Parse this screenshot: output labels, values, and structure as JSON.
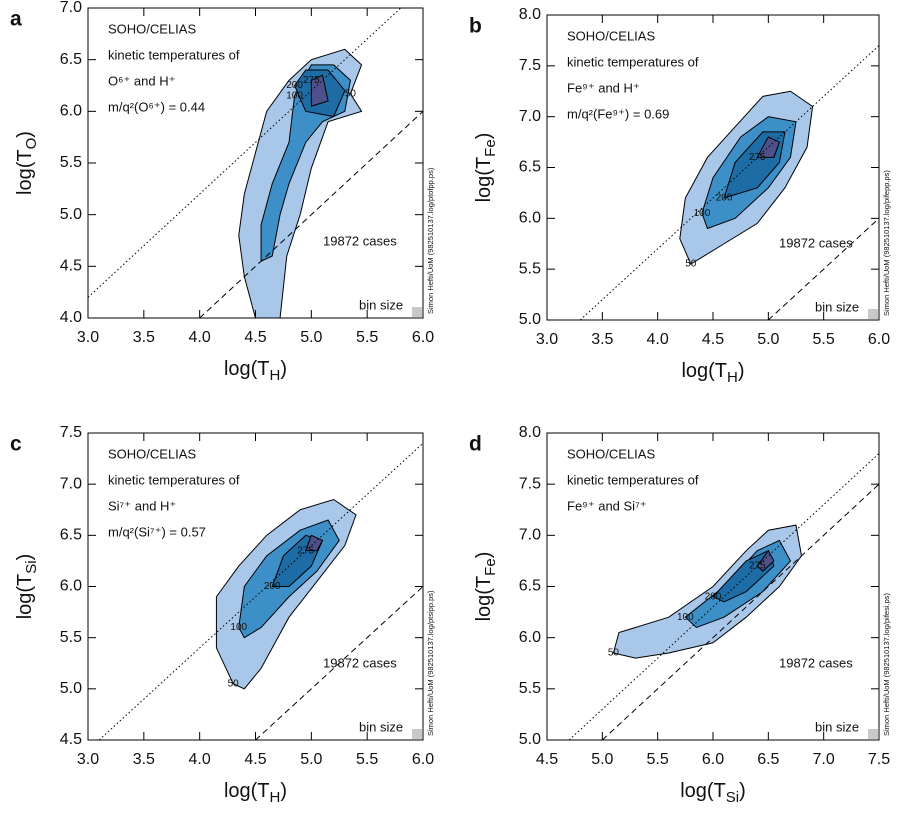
{
  "chart_data": [
    {
      "type": "contour",
      "panel": "a",
      "x_label": {
        "text": "log(T",
        "sub": "H",
        "close": ")"
      },
      "y_label": {
        "text": "log(T",
        "sub": "O",
        "close": ")"
      },
      "xlim": [
        3.0,
        6.0
      ],
      "ylim": [
        4.0,
        7.0
      ],
      "xticks": [
        {
          "value": 3,
          "label": "3.0"
        },
        {
          "value": 3.5,
          "label": "3.5"
        },
        {
          "value": 4,
          "label": "4.0"
        },
        {
          "value": 4.5,
          "label": "4.5"
        },
        {
          "value": 5,
          "label": "5.0"
        },
        {
          "value": 5.5,
          "label": "5.5"
        },
        {
          "value": 6,
          "label": "6.0"
        }
      ],
      "yticks": [
        {
          "value": 4,
          "label": "4.0"
        },
        {
          "value": 4.5,
          "label": "4.5"
        },
        {
          "value": 5,
          "label": "5.0"
        },
        {
          "value": 5.5,
          "label": "5.5"
        },
        {
          "value": 6,
          "label": "6.0"
        },
        {
          "value": 6.5,
          "label": "6.5"
        },
        {
          "value": 7,
          "label": "7.0"
        }
      ],
      "annotations": [
        "SOHO/CELIAS",
        "kinetic temperatures of",
        "O⁶⁺ and H⁺",
        "m/q²(O⁶⁺) = 0.44"
      ],
      "cases": "19872 cases",
      "bin_label": "bin size",
      "credit": "Simon Hefti/UoM (982510137.log/ptofpp.ps)",
      "contours": [
        {
          "level": 50,
          "color": "#a9c7e9",
          "x": [
            5.35,
            5.45,
            5.3,
            5.0,
            4.8,
            4.6,
            4.5,
            4.4,
            4.35,
            4.4,
            4.5,
            4.72,
            4.78,
            4.9,
            5.0,
            5.15,
            5.45
          ],
          "y": [
            6.17,
            6.45,
            6.6,
            6.5,
            6.3,
            6.0,
            5.6,
            5.2,
            4.8,
            4.4,
            4.0,
            4.0,
            4.6,
            5.0,
            5.45,
            5.9,
            6.0
          ]
        },
        {
          "level": 100,
          "color": "#3d8fc7",
          "x": [
            4.85,
            4.8,
            4.65,
            4.55,
            4.55,
            4.65,
            4.72,
            4.8,
            4.95,
            5.1,
            5.3,
            5.35,
            5.2,
            5.0
          ],
          "y": [
            6.15,
            5.7,
            5.3,
            4.9,
            4.55,
            4.6,
            5.0,
            5.3,
            5.7,
            5.9,
            6.0,
            6.3,
            6.45,
            6.45
          ]
        },
        {
          "level": 200,
          "color": "#1d6ca5",
          "x": [
            4.85,
            4.95,
            5.2,
            5.3,
            5.15,
            4.95
          ],
          "y": [
            6.25,
            6.0,
            5.95,
            6.2,
            6.4,
            6.4
          ]
        },
        {
          "level": 275,
          "color": "#4e508c",
          "x": [
            5.0,
            5.0,
            5.15,
            5.1
          ],
          "y": [
            6.3,
            6.05,
            6.1,
            6.35
          ]
        }
      ],
      "reference_lines": [
        {
          "style": "dotted",
          "x": [
            3.0,
            5.8
          ],
          "y": [
            4.2,
            7.0
          ]
        },
        {
          "style": "dashed",
          "x": [
            4.0,
            6.0
          ],
          "y": [
            4.0,
            6.0
          ]
        }
      ]
    },
    {
      "type": "contour",
      "panel": "b",
      "x_label": {
        "text": "log(T",
        "sub": "H",
        "close": ")"
      },
      "y_label": {
        "text": "log(T",
        "sub": "Fe",
        "close": ")"
      },
      "xlim": [
        3.0,
        6.0
      ],
      "ylim": [
        5.0,
        8.0
      ],
      "xticks": [
        {
          "value": 3,
          "label": "3.0"
        },
        {
          "value": 3.5,
          "label": "3.5"
        },
        {
          "value": 4,
          "label": "4.0"
        },
        {
          "value": 4.5,
          "label": "4.5"
        },
        {
          "value": 5,
          "label": "5.0"
        },
        {
          "value": 5.5,
          "label": "5.5"
        },
        {
          "value": 6,
          "label": "6.0"
        }
      ],
      "yticks": [
        {
          "value": 5,
          "label": "5.0"
        },
        {
          "value": 5.5,
          "label": "5.5"
        },
        {
          "value": 6,
          "label": "6.0"
        },
        {
          "value": 6.5,
          "label": "6.5"
        },
        {
          "value": 7,
          "label": "7.0"
        },
        {
          "value": 7.5,
          "label": "7.5"
        },
        {
          "value": 8,
          "label": "8.0"
        }
      ],
      "annotations": [
        "SOHO/CELIAS",
        "kinetic temperatures of",
        "Fe⁹⁺ and H⁺",
        "m/q²(Fe⁹⁺) = 0.69"
      ],
      "cases": "19872 cases",
      "bin_label": "bin size",
      "credit": "Simon Hefti/UoM (982510137.log/pifepp.ps)",
      "contours": [
        {
          "level": 50,
          "color": "#a9c7e9",
          "x": [
            4.3,
            4.2,
            4.25,
            4.45,
            4.7,
            4.95,
            5.2,
            5.4,
            5.35,
            5.15,
            4.9,
            4.6
          ],
          "y": [
            5.55,
            5.8,
            6.2,
            6.6,
            6.9,
            7.2,
            7.25,
            7.1,
            6.7,
            6.3,
            5.95,
            5.75
          ]
        },
        {
          "level": 100,
          "color": "#3d8fc7",
          "x": [
            4.4,
            4.5,
            4.75,
            5.0,
            5.25,
            5.2,
            5.0,
            4.7,
            4.45
          ],
          "y": [
            6.05,
            6.4,
            6.8,
            7.0,
            6.95,
            6.6,
            6.3,
            6.0,
            5.9
          ]
        },
        {
          "level": 200,
          "color": "#1d6ca5",
          "x": [
            4.6,
            4.7,
            4.95,
            5.15,
            5.1,
            4.9
          ],
          "y": [
            6.2,
            6.55,
            6.85,
            6.85,
            6.55,
            6.3
          ]
        },
        {
          "level": 275,
          "color": "#4e508c",
          "x": [
            4.9,
            5.0,
            5.1,
            5.05
          ],
          "y": [
            6.6,
            6.8,
            6.75,
            6.6
          ]
        }
      ],
      "reference_lines": [
        {
          "style": "dotted",
          "x": [
            3.3,
            6.0
          ],
          "y": [
            5.0,
            7.7
          ]
        },
        {
          "style": "dashed",
          "x": [
            5.0,
            6.0
          ],
          "y": [
            5.0,
            6.0
          ]
        }
      ]
    },
    {
      "type": "contour",
      "panel": "c",
      "x_label": {
        "text": "log(T",
        "sub": "H",
        "close": ")"
      },
      "y_label": {
        "text": "log(T",
        "sub": "Si",
        "close": ")"
      },
      "xlim": [
        3.0,
        6.0
      ],
      "ylim": [
        4.5,
        7.5
      ],
      "xticks": [
        {
          "value": 3,
          "label": "3.0"
        },
        {
          "value": 3.5,
          "label": "3.5"
        },
        {
          "value": 4,
          "label": "4.0"
        },
        {
          "value": 4.5,
          "label": "4.5"
        },
        {
          "value": 5,
          "label": "5.0"
        },
        {
          "value": 5.5,
          "label": "5.5"
        },
        {
          "value": 6,
          "label": "6.0"
        }
      ],
      "yticks": [
        {
          "value": 4.5,
          "label": "4.5"
        },
        {
          "value": 5,
          "label": "5.0"
        },
        {
          "value": 5.5,
          "label": "5.5"
        },
        {
          "value": 6,
          "label": "6.0"
        },
        {
          "value": 6.5,
          "label": "6.5"
        },
        {
          "value": 7,
          "label": "7.0"
        },
        {
          "value": 7.5,
          "label": "7.5"
        }
      ],
      "annotations": [
        "SOHO/CELIAS",
        "kinetic temperatures of",
        "Si⁷⁺ and H⁺",
        "m/q²(Si⁷⁺) = 0.57"
      ],
      "cases": "19872 cases",
      "bin_label": "bin size",
      "credit": "Simon Hefti/UoM (982510137.log/ptsipp.ps)",
      "contours": [
        {
          "level": 50,
          "color": "#a9c7e9",
          "x": [
            4.3,
            4.15,
            4.15,
            4.35,
            4.6,
            4.9,
            5.2,
            5.4,
            5.3,
            5.05,
            4.8,
            4.55,
            4.4
          ],
          "y": [
            5.05,
            5.4,
            5.9,
            6.2,
            6.5,
            6.75,
            6.85,
            6.7,
            6.4,
            6.05,
            5.7,
            5.2,
            5.0
          ]
        },
        {
          "level": 100,
          "color": "#3d8fc7",
          "x": [
            4.35,
            4.4,
            4.6,
            4.9,
            5.15,
            5.25,
            5.05,
            4.8,
            4.55,
            4.4
          ],
          "y": [
            5.6,
            6.0,
            6.3,
            6.55,
            6.65,
            6.45,
            6.15,
            5.9,
            5.6,
            5.5
          ]
        },
        {
          "level": 200,
          "color": "#1d6ca5",
          "x": [
            4.65,
            4.75,
            4.95,
            5.1,
            5.0,
            4.8
          ],
          "y": [
            6.0,
            6.3,
            6.5,
            6.45,
            6.2,
            6.0
          ]
        },
        {
          "level": 275,
          "color": "#4e508c",
          "x": [
            4.95,
            5.0,
            5.1,
            5.05
          ],
          "y": [
            6.35,
            6.5,
            6.45,
            6.35
          ]
        }
      ],
      "reference_lines": [
        {
          "style": "dotted",
          "x": [
            3.1,
            6.0
          ],
          "y": [
            4.5,
            7.4
          ]
        },
        {
          "style": "dashed",
          "x": [
            4.5,
            6.0
          ],
          "y": [
            4.5,
            6.0
          ]
        }
      ]
    },
    {
      "type": "contour",
      "panel": "d",
      "x_label": {
        "text": "log(T",
        "sub": "Si",
        "close": ")"
      },
      "y_label": {
        "text": "log(T",
        "sub": "Fe",
        "close": ")"
      },
      "xlim": [
        4.5,
        7.5
      ],
      "ylim": [
        5.0,
        8.0
      ],
      "xticks": [
        {
          "value": 4.5,
          "label": "4.5"
        },
        {
          "value": 5,
          "label": "5.0"
        },
        {
          "value": 5.5,
          "label": "5.5"
        },
        {
          "value": 6,
          "label": "6.0"
        },
        {
          "value": 6.5,
          "label": "6.5"
        },
        {
          "value": 7,
          "label": "7.0"
        },
        {
          "value": 7.5,
          "label": "7.5"
        }
      ],
      "yticks": [
        {
          "value": 5,
          "label": "5.0"
        },
        {
          "value": 5.5,
          "label": "5.5"
        },
        {
          "value": 6,
          "label": "6.0"
        },
        {
          "value": 6.5,
          "label": "6.5"
        },
        {
          "value": 7,
          "label": "7.0"
        },
        {
          "value": 7.5,
          "label": "7.5"
        },
        {
          "value": 8,
          "label": "8.0"
        }
      ],
      "annotations": [
        "SOHO/CELIAS",
        "kinetic temperatures of",
        "Fe⁹⁺ and Si⁷⁺"
      ],
      "cases": "19872 cases",
      "bin_label": "bin size",
      "credit": "Simon Hefti/UoM (982510137.log/pifesi.ps)",
      "contours": [
        {
          "level": 50,
          "color": "#a9c7e9",
          "x": [
            5.1,
            5.15,
            5.6,
            6.0,
            6.3,
            6.5,
            6.75,
            6.8,
            6.6,
            6.3,
            6.0,
            5.6,
            5.3
          ],
          "y": [
            5.85,
            6.05,
            6.2,
            6.5,
            6.85,
            7.05,
            7.1,
            6.8,
            6.5,
            6.2,
            5.95,
            5.85,
            5.8
          ]
        },
        {
          "level": 100,
          "color": "#3d8fc7",
          "x": [
            5.75,
            6.1,
            6.4,
            6.6,
            6.7,
            6.45,
            6.1,
            5.85
          ],
          "y": [
            6.2,
            6.5,
            6.85,
            6.95,
            6.75,
            6.45,
            6.2,
            6.1
          ]
        },
        {
          "level": 200,
          "color": "#1d6ca5",
          "x": [
            6.0,
            6.3,
            6.5,
            6.55,
            6.3,
            6.1
          ],
          "y": [
            6.4,
            6.75,
            6.85,
            6.7,
            6.45,
            6.35
          ]
        },
        {
          "level": 275,
          "color": "#4e508c",
          "x": [
            6.4,
            6.5,
            6.55,
            6.45
          ],
          "y": [
            6.7,
            6.85,
            6.75,
            6.65
          ]
        }
      ],
      "reference_lines": [
        {
          "style": "dotted",
          "x": [
            4.7,
            7.5
          ],
          "y": [
            5.0,
            7.8
          ]
        },
        {
          "style": "dashed",
          "x": [
            5.0,
            7.5
          ],
          "y": [
            5.0,
            7.5
          ]
        }
      ]
    }
  ]
}
